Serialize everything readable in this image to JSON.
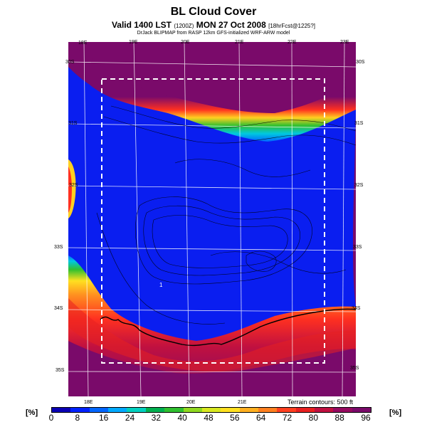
{
  "header": {
    "title": "BL Cloud Cover",
    "subtitle_main": "Valid 1400 LST",
    "subtitle_code": "(1200Z)",
    "subtitle_date": "MON 27 Oct 2008",
    "subtitle_run": "[18hrFcst@1225?]",
    "credit": "DrJack BLIPMAP from RASP 12km GFS-initialized WRF-ARW model"
  },
  "map": {
    "top_lon_labels": [
      "18E",
      "19E",
      "20E",
      "21E",
      "22E",
      "23E"
    ],
    "bottom_lon_labels": [
      "18E",
      "19E",
      "20E",
      "21E"
    ],
    "lat_labels_left": [
      "30S",
      "31S",
      "32S",
      "33S",
      "34S",
      "35S"
    ],
    "lat_labels_right": [
      "30S",
      "31S",
      "32S",
      "33S",
      "34S",
      "35S"
    ],
    "terrain_note": "Terrain contours: 500 ft",
    "point_label": "1"
  },
  "colorbar": {
    "unit_label": "[%]",
    "ticks": [
      "0",
      "8",
      "16",
      "24",
      "32",
      "40",
      "48",
      "56",
      "64",
      "72",
      "80",
      "88",
      "96"
    ],
    "colors": [
      "#0a00b4",
      "#0022ff",
      "#0066ff",
      "#00aaff",
      "#00d0c0",
      "#00b050",
      "#30c030",
      "#90d820",
      "#d8e820",
      "#ffe020",
      "#ffb020",
      "#ff8020",
      "#ff4020",
      "#e82020",
      "#c01040",
      "#960a60",
      "#7a0a6a"
    ]
  },
  "colors": {
    "cloud_free": "#0a1ef0",
    "overcast": "#7a0a6a"
  }
}
